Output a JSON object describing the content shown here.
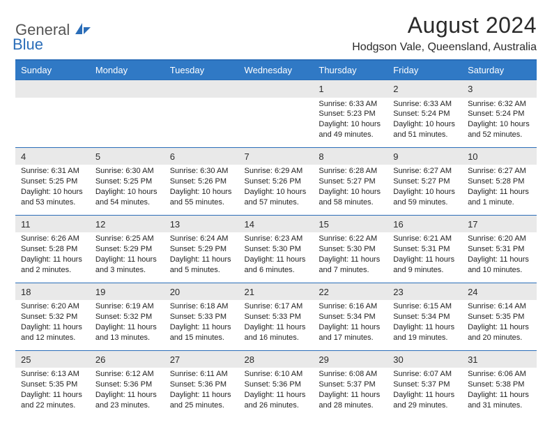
{
  "brand": {
    "name": "General",
    "sub": "Blue"
  },
  "title": "August 2024",
  "location": "Hodgson Vale, Queensland, Australia",
  "colors": {
    "accent": "#3079c5",
    "rule": "#2a6db8",
    "daybg": "#e9e9e9"
  },
  "day_headers": [
    "Sunday",
    "Monday",
    "Tuesday",
    "Wednesday",
    "Thursday",
    "Friday",
    "Saturday"
  ],
  "weeks": [
    [
      {
        "num": "",
        "sunrise": "",
        "sunset": "",
        "daylight1": "",
        "daylight2": ""
      },
      {
        "num": "",
        "sunrise": "",
        "sunset": "",
        "daylight1": "",
        "daylight2": ""
      },
      {
        "num": "",
        "sunrise": "",
        "sunset": "",
        "daylight1": "",
        "daylight2": ""
      },
      {
        "num": "",
        "sunrise": "",
        "sunset": "",
        "daylight1": "",
        "daylight2": ""
      },
      {
        "num": "1",
        "sunrise": "Sunrise: 6:33 AM",
        "sunset": "Sunset: 5:23 PM",
        "daylight1": "Daylight: 10 hours",
        "daylight2": "and 49 minutes."
      },
      {
        "num": "2",
        "sunrise": "Sunrise: 6:33 AM",
        "sunset": "Sunset: 5:24 PM",
        "daylight1": "Daylight: 10 hours",
        "daylight2": "and 51 minutes."
      },
      {
        "num": "3",
        "sunrise": "Sunrise: 6:32 AM",
        "sunset": "Sunset: 5:24 PM",
        "daylight1": "Daylight: 10 hours",
        "daylight2": "and 52 minutes."
      }
    ],
    [
      {
        "num": "4",
        "sunrise": "Sunrise: 6:31 AM",
        "sunset": "Sunset: 5:25 PM",
        "daylight1": "Daylight: 10 hours",
        "daylight2": "and 53 minutes."
      },
      {
        "num": "5",
        "sunrise": "Sunrise: 6:30 AM",
        "sunset": "Sunset: 5:25 PM",
        "daylight1": "Daylight: 10 hours",
        "daylight2": "and 54 minutes."
      },
      {
        "num": "6",
        "sunrise": "Sunrise: 6:30 AM",
        "sunset": "Sunset: 5:26 PM",
        "daylight1": "Daylight: 10 hours",
        "daylight2": "and 55 minutes."
      },
      {
        "num": "7",
        "sunrise": "Sunrise: 6:29 AM",
        "sunset": "Sunset: 5:26 PM",
        "daylight1": "Daylight: 10 hours",
        "daylight2": "and 57 minutes."
      },
      {
        "num": "8",
        "sunrise": "Sunrise: 6:28 AM",
        "sunset": "Sunset: 5:27 PM",
        "daylight1": "Daylight: 10 hours",
        "daylight2": "and 58 minutes."
      },
      {
        "num": "9",
        "sunrise": "Sunrise: 6:27 AM",
        "sunset": "Sunset: 5:27 PM",
        "daylight1": "Daylight: 10 hours",
        "daylight2": "and 59 minutes."
      },
      {
        "num": "10",
        "sunrise": "Sunrise: 6:27 AM",
        "sunset": "Sunset: 5:28 PM",
        "daylight1": "Daylight: 11 hours",
        "daylight2": "and 1 minute."
      }
    ],
    [
      {
        "num": "11",
        "sunrise": "Sunrise: 6:26 AM",
        "sunset": "Sunset: 5:28 PM",
        "daylight1": "Daylight: 11 hours",
        "daylight2": "and 2 minutes."
      },
      {
        "num": "12",
        "sunrise": "Sunrise: 6:25 AM",
        "sunset": "Sunset: 5:29 PM",
        "daylight1": "Daylight: 11 hours",
        "daylight2": "and 3 minutes."
      },
      {
        "num": "13",
        "sunrise": "Sunrise: 6:24 AM",
        "sunset": "Sunset: 5:29 PM",
        "daylight1": "Daylight: 11 hours",
        "daylight2": "and 5 minutes."
      },
      {
        "num": "14",
        "sunrise": "Sunrise: 6:23 AM",
        "sunset": "Sunset: 5:30 PM",
        "daylight1": "Daylight: 11 hours",
        "daylight2": "and 6 minutes."
      },
      {
        "num": "15",
        "sunrise": "Sunrise: 6:22 AM",
        "sunset": "Sunset: 5:30 PM",
        "daylight1": "Daylight: 11 hours",
        "daylight2": "and 7 minutes."
      },
      {
        "num": "16",
        "sunrise": "Sunrise: 6:21 AM",
        "sunset": "Sunset: 5:31 PM",
        "daylight1": "Daylight: 11 hours",
        "daylight2": "and 9 minutes."
      },
      {
        "num": "17",
        "sunrise": "Sunrise: 6:20 AM",
        "sunset": "Sunset: 5:31 PM",
        "daylight1": "Daylight: 11 hours",
        "daylight2": "and 10 minutes."
      }
    ],
    [
      {
        "num": "18",
        "sunrise": "Sunrise: 6:20 AM",
        "sunset": "Sunset: 5:32 PM",
        "daylight1": "Daylight: 11 hours",
        "daylight2": "and 12 minutes."
      },
      {
        "num": "19",
        "sunrise": "Sunrise: 6:19 AM",
        "sunset": "Sunset: 5:32 PM",
        "daylight1": "Daylight: 11 hours",
        "daylight2": "and 13 minutes."
      },
      {
        "num": "20",
        "sunrise": "Sunrise: 6:18 AM",
        "sunset": "Sunset: 5:33 PM",
        "daylight1": "Daylight: 11 hours",
        "daylight2": "and 15 minutes."
      },
      {
        "num": "21",
        "sunrise": "Sunrise: 6:17 AM",
        "sunset": "Sunset: 5:33 PM",
        "daylight1": "Daylight: 11 hours",
        "daylight2": "and 16 minutes."
      },
      {
        "num": "22",
        "sunrise": "Sunrise: 6:16 AM",
        "sunset": "Sunset: 5:34 PM",
        "daylight1": "Daylight: 11 hours",
        "daylight2": "and 17 minutes."
      },
      {
        "num": "23",
        "sunrise": "Sunrise: 6:15 AM",
        "sunset": "Sunset: 5:34 PM",
        "daylight1": "Daylight: 11 hours",
        "daylight2": "and 19 minutes."
      },
      {
        "num": "24",
        "sunrise": "Sunrise: 6:14 AM",
        "sunset": "Sunset: 5:35 PM",
        "daylight1": "Daylight: 11 hours",
        "daylight2": "and 20 minutes."
      }
    ],
    [
      {
        "num": "25",
        "sunrise": "Sunrise: 6:13 AM",
        "sunset": "Sunset: 5:35 PM",
        "daylight1": "Daylight: 11 hours",
        "daylight2": "and 22 minutes."
      },
      {
        "num": "26",
        "sunrise": "Sunrise: 6:12 AM",
        "sunset": "Sunset: 5:36 PM",
        "daylight1": "Daylight: 11 hours",
        "daylight2": "and 23 minutes."
      },
      {
        "num": "27",
        "sunrise": "Sunrise: 6:11 AM",
        "sunset": "Sunset: 5:36 PM",
        "daylight1": "Daylight: 11 hours",
        "daylight2": "and 25 minutes."
      },
      {
        "num": "28",
        "sunrise": "Sunrise: 6:10 AM",
        "sunset": "Sunset: 5:36 PM",
        "daylight1": "Daylight: 11 hours",
        "daylight2": "and 26 minutes."
      },
      {
        "num": "29",
        "sunrise": "Sunrise: 6:08 AM",
        "sunset": "Sunset: 5:37 PM",
        "daylight1": "Daylight: 11 hours",
        "daylight2": "and 28 minutes."
      },
      {
        "num": "30",
        "sunrise": "Sunrise: 6:07 AM",
        "sunset": "Sunset: 5:37 PM",
        "daylight1": "Daylight: 11 hours",
        "daylight2": "and 29 minutes."
      },
      {
        "num": "31",
        "sunrise": "Sunrise: 6:06 AM",
        "sunset": "Sunset: 5:38 PM",
        "daylight1": "Daylight: 11 hours",
        "daylight2": "and 31 minutes."
      }
    ]
  ]
}
